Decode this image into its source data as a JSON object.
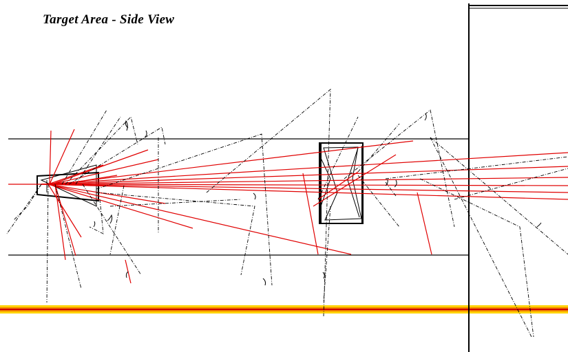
{
  "title": "Target Area - Side View",
  "colors": {
    "background": "#ffffff",
    "structure": "#000000",
    "charged_tracks": "#e00000",
    "neutral_tracks": "#000000",
    "beamline_band": [
      "#ffd200",
      "#f08000",
      "#d00000",
      "#f08000",
      "#ffd200"
    ]
  }
}
